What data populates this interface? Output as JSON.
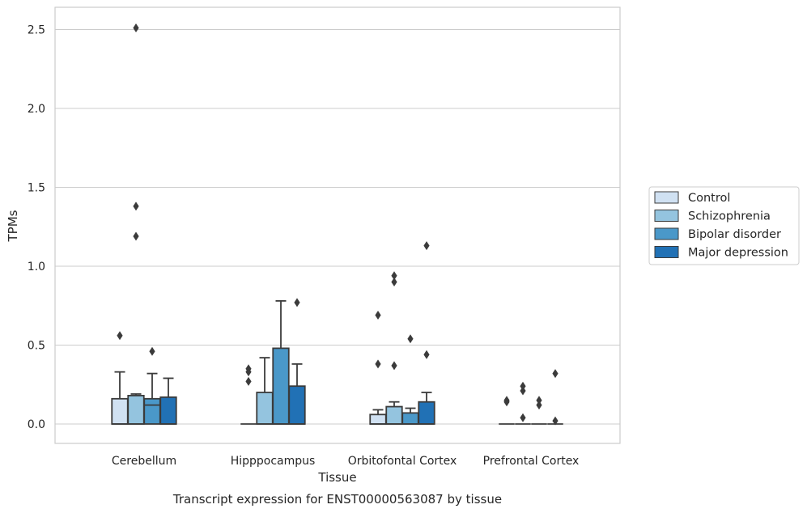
{
  "chart_data": {
    "type": "box",
    "title": "",
    "caption": "Transcript expression for ENST00000563087 by tissue",
    "xlabel": "Tissue",
    "ylabel": "TPMs",
    "ylim": [
      -0.12,
      2.65
    ],
    "yticks": [
      0.0,
      0.5,
      1.0,
      1.5,
      2.0,
      2.5
    ],
    "ytick_labels": [
      "0.0",
      "0.5",
      "1.0",
      "1.5",
      "2.0",
      "2.5"
    ],
    "grid": "horizontal",
    "legend_position": "right",
    "categories": [
      "Cerebellum",
      "Hipppocampus",
      "Orbitofontal Cortex",
      "Prefrontal Cortex"
    ],
    "series": [
      {
        "name": "Control",
        "color": "#d0e1f2",
        "boxes": [
          {
            "q1": 0.0,
            "median": 0.0,
            "q3": 0.16,
            "whisker_low": 0.0,
            "whisker_high": 0.33,
            "outliers": [
              0.56
            ]
          },
          {
            "q1": 0.0,
            "median": 0.0,
            "q3": 0.0,
            "whisker_low": 0.0,
            "whisker_high": 0.0,
            "outliers": [
              0.27,
              0.33,
              0.35
            ]
          },
          {
            "q1": 0.0,
            "median": 0.0,
            "q3": 0.06,
            "whisker_low": 0.0,
            "whisker_high": 0.09,
            "outliers": [
              0.38,
              0.69
            ]
          },
          {
            "q1": 0.0,
            "median": 0.0,
            "q3": 0.0,
            "whisker_low": 0.0,
            "whisker_high": 0.0,
            "outliers": [
              0.14,
              0.15
            ]
          }
        ]
      },
      {
        "name": "Schizophrenia",
        "color": "#94c4df",
        "boxes": [
          {
            "q1": 0.0,
            "median": 0.0,
            "q3": 0.18,
            "whisker_low": 0.0,
            "whisker_high": 0.19,
            "outliers": [
              1.19,
              1.38,
              2.51
            ]
          },
          {
            "q1": 0.0,
            "median": 0.0,
            "q3": 0.2,
            "whisker_low": 0.0,
            "whisker_high": 0.42,
            "outliers": []
          },
          {
            "q1": 0.0,
            "median": 0.0,
            "q3": 0.11,
            "whisker_low": 0.0,
            "whisker_high": 0.14,
            "outliers": [
              0.37,
              0.9,
              0.94
            ]
          },
          {
            "q1": 0.0,
            "median": 0.0,
            "q3": 0.0,
            "whisker_low": 0.0,
            "whisker_high": 0.0,
            "outliers": [
              0.04,
              0.21,
              0.24
            ]
          }
        ]
      },
      {
        "name": "Bipolar disorder",
        "color": "#4a98c9",
        "boxes": [
          {
            "q1": 0.0,
            "median": 0.12,
            "q3": 0.16,
            "whisker_low": 0.0,
            "whisker_high": 0.32,
            "outliers": [
              0.46
            ]
          },
          {
            "q1": 0.0,
            "median": 0.0,
            "q3": 0.48,
            "whisker_low": 0.0,
            "whisker_high": 0.78,
            "outliers": []
          },
          {
            "q1": 0.0,
            "median": 0.0,
            "q3": 0.07,
            "whisker_low": 0.0,
            "whisker_high": 0.1,
            "outliers": [
              0.54
            ]
          },
          {
            "q1": 0.0,
            "median": 0.0,
            "q3": 0.0,
            "whisker_low": 0.0,
            "whisker_high": 0.0,
            "outliers": [
              0.12,
              0.15
            ]
          }
        ]
      },
      {
        "name": "Major depression",
        "color": "#2171b5",
        "boxes": [
          {
            "q1": 0.0,
            "median": 0.0,
            "q3": 0.17,
            "whisker_low": 0.0,
            "whisker_high": 0.29,
            "outliers": []
          },
          {
            "q1": 0.0,
            "median": 0.0,
            "q3": 0.24,
            "whisker_low": 0.0,
            "whisker_high": 0.38,
            "outliers": [
              0.77
            ]
          },
          {
            "q1": 0.0,
            "median": 0.0,
            "q3": 0.14,
            "whisker_low": 0.0,
            "whisker_high": 0.2,
            "outliers": [
              0.44,
              1.13
            ]
          },
          {
            "q1": 0.0,
            "median": 0.0,
            "q3": 0.0,
            "whisker_low": 0.0,
            "whisker_high": 0.0,
            "outliers": [
              0.02,
              0.32
            ]
          }
        ]
      }
    ]
  }
}
